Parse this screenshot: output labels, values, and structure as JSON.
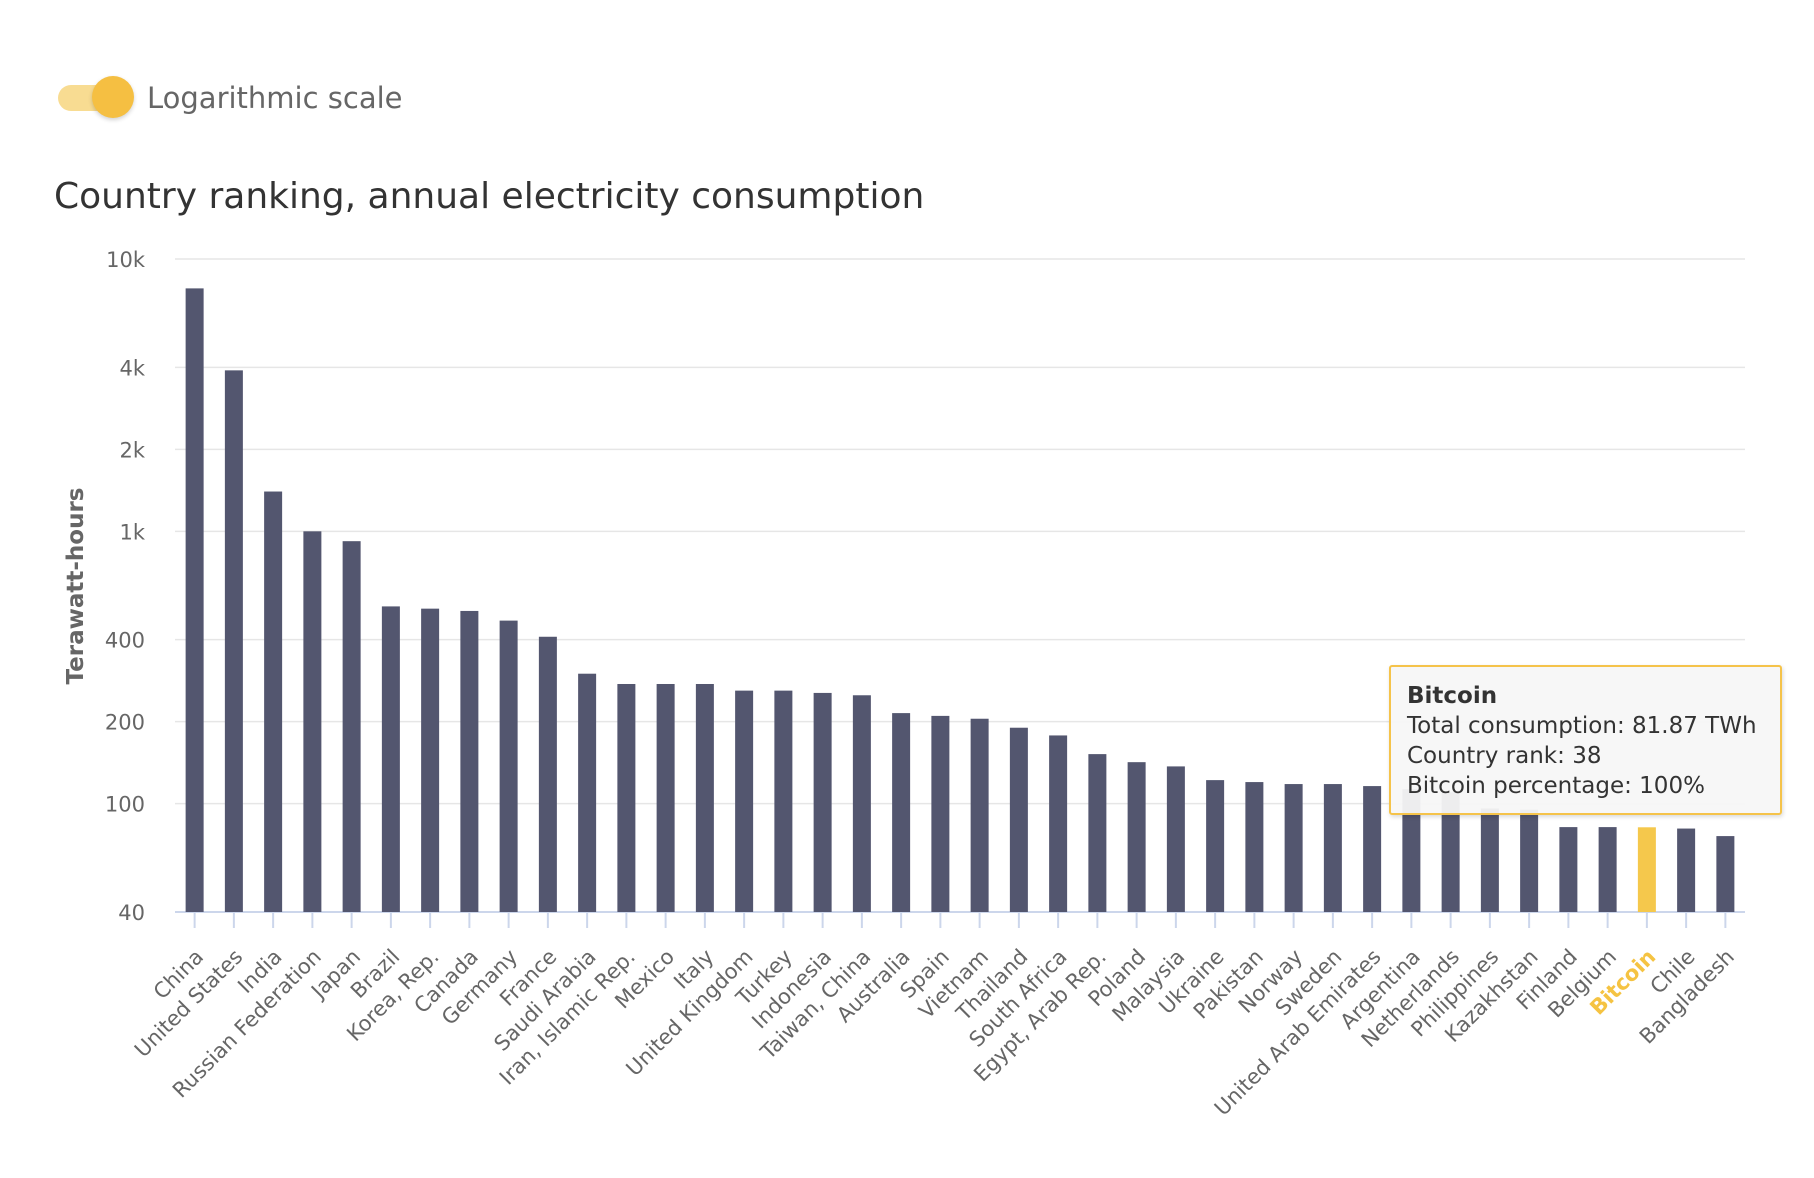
{
  "toggle": {
    "label": "Logarithmic scale",
    "on": true
  },
  "tooltip": {
    "title": "Bitcoin",
    "lines": [
      "Total consumption: 81.87 TWh",
      "Country rank: 38",
      "Bitcoin percentage: 100%"
    ]
  },
  "colors": {
    "bar": "#53566f",
    "highlight": "#f5c84c",
    "highlight_label": "#f5c342",
    "grid": "#e6e6e6",
    "axis": "#ccd6eb",
    "toggle_track": "#f8dc92",
    "toggle_knob": "#f5bf42"
  },
  "chart_data": {
    "type": "bar",
    "title": "Country ranking, annual electricity consumption",
    "ylabel": "Terawatt-hours",
    "xlabel": "",
    "yscale": "log",
    "ylim": [
      40,
      10000
    ],
    "yticks": [
      {
        "value": 40,
        "label": "40"
      },
      {
        "value": 100,
        "label": "100"
      },
      {
        "value": 200,
        "label": "200"
      },
      {
        "value": 400,
        "label": "400"
      },
      {
        "value": 1000,
        "label": "1k"
      },
      {
        "value": 2000,
        "label": "2k"
      },
      {
        "value": 4000,
        "label": "4k"
      },
      {
        "value": 10000,
        "label": "10k"
      }
    ],
    "grid": true,
    "highlight": "Bitcoin",
    "categories": [
      "China",
      "United States",
      "India",
      "Russian Federation",
      "Japan",
      "Brazil",
      "Korea, Rep.",
      "Canada",
      "Germany",
      "France",
      "Saudi Arabia",
      "Iran, Islamic Rep.",
      "Mexico",
      "Italy",
      "United Kingdom",
      "Turkey",
      "Indonesia",
      "Taiwan, China",
      "Australia",
      "Spain",
      "Vietnam",
      "Thailand",
      "South Africa",
      "Egypt, Arab Rep.",
      "Poland",
      "Malaysia",
      "Ukraine",
      "Pakistan",
      "Norway",
      "Sweden",
      "United Arab Emirates",
      "Argentina",
      "Netherlands",
      "Philippines",
      "Kazakhstan",
      "Finland",
      "Belgium",
      "Bitcoin",
      "Chile",
      "Bangladesh"
    ],
    "values": [
      7800,
      3900,
      1400,
      1000,
      920,
      530,
      520,
      510,
      470,
      410,
      300,
      275,
      275,
      275,
      260,
      260,
      255,
      250,
      215,
      210,
      205,
      190,
      178,
      152,
      142,
      137,
      122,
      120,
      118,
      118,
      116,
      113,
      110,
      96,
      95,
      82,
      82,
      81.87,
      81,
      76
    ]
  }
}
